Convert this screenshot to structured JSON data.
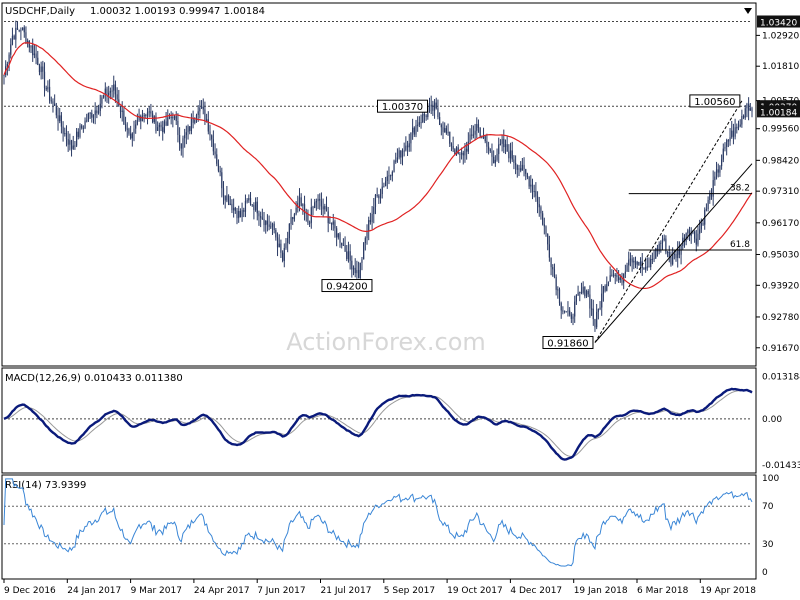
{
  "chart_data": [
    {
      "type": "candlestick",
      "title": "USDCHF,Daily",
      "ohlc": "1.00032 1.00193 0.99947 1.00184",
      "ylim": [
        0.9105,
        1.0405
      ],
      "y_tick_labels": [
        "1.02920",
        "1.01810",
        "1.00570",
        "0.99560",
        "0.98420",
        "0.97310",
        "0.96170",
        "0.95030",
        "0.93920",
        "0.92780",
        "0.91670"
      ],
      "y_tick_values": [
        1.0292,
        1.0181,
        1.0057,
        0.9956,
        0.9842,
        0.9731,
        0.9617,
        0.9503,
        0.9392,
        0.9278,
        0.9167
      ],
      "x_tick_labels": [
        "9 Dec 2016",
        "24 Jan 2017",
        "9 Mar 2017",
        "24 Apr 2017",
        "7 Jun 2017",
        "21 Jul 2017",
        "5 Sep 2017",
        "19 Oct 2017",
        "4 Dec 2017",
        "19 Jan 2018",
        "6 Mar 2018",
        "19 Apr 2018"
      ],
      "price_axis_badges": [
        {
          "label": "1.03420",
          "value": 1.0342
        },
        {
          "label": "1.00370",
          "value": 1.0037
        },
        {
          "label": "1.00184",
          "value": 1.00184
        }
      ],
      "price_path_anchors": [
        [
          0,
          1.015
        ],
        [
          5,
          1.029
        ],
        [
          10,
          1.032
        ],
        [
          15,
          1.026
        ],
        [
          20,
          1.02
        ],
        [
          25,
          1.01
        ],
        [
          30,
          1.003
        ],
        [
          35,
          0.995
        ],
        [
          40,
          0.989
        ],
        [
          45,
          0.995
        ],
        [
          50,
          1.0
        ],
        [
          55,
          1.003
        ],
        [
          60,
          1.008
        ],
        [
          65,
          1.01
        ],
        [
          70,
          1.001
        ],
        [
          75,
          0.99
        ],
        [
          80,
          1.0
        ],
        [
          85,
          1.002
        ],
        [
          90,
          0.997
        ],
        [
          95,
          0.996
        ],
        [
          100,
          1.001
        ],
        [
          105,
          0.99
        ],
        [
          110,
          0.996
        ],
        [
          115,
          1.004
        ],
        [
          120,
          0.999
        ],
        [
          125,
          0.987
        ],
        [
          130,
          0.973
        ],
        [
          135,
          0.968
        ],
        [
          140,
          0.964
        ],
        [
          145,
          0.97
        ],
        [
          150,
          0.967
        ],
        [
          155,
          0.962
        ],
        [
          160,
          0.959
        ],
        [
          165,
          0.948
        ],
        [
          170,
          0.962
        ],
        [
          175,
          0.969
        ],
        [
          180,
          0.962
        ],
        [
          185,
          0.97
        ],
        [
          190,
          0.966
        ],
        [
          195,
          0.96
        ],
        [
          200,
          0.955
        ],
        [
          205,
          0.948
        ],
        [
          210,
          0.943
        ],
        [
          215,
          0.959
        ],
        [
          220,
          0.97
        ],
        [
          225,
          0.976
        ],
        [
          230,
          0.982
        ],
        [
          235,
          0.987
        ],
        [
          240,
          0.992
        ],
        [
          245,
          0.998
        ],
        [
          250,
          1.001
        ],
        [
          255,
          1.003
        ],
        [
          260,
          0.996
        ],
        [
          265,
          0.99
        ],
        [
          270,
          0.985
        ],
        [
          275,
          0.99
        ],
        [
          280,
          0.997
        ],
        [
          285,
          0.99
        ],
        [
          290,
          0.985
        ],
        [
          295,
          0.99
        ],
        [
          300,
          0.986
        ],
        [
          305,
          0.982
        ],
        [
          310,
          0.978
        ],
        [
          315,
          0.972
        ],
        [
          320,
          0.96
        ],
        [
          325,
          0.945
        ],
        [
          330,
          0.932
        ],
        [
          335,
          0.927
        ],
        [
          340,
          0.935
        ],
        [
          345,
          0.938
        ],
        [
          350,
          0.925
        ],
        [
          355,
          0.938
        ],
        [
          360,
          0.945
        ],
        [
          365,
          0.94
        ],
        [
          370,
          0.95
        ],
        [
          375,
          0.948
        ],
        [
          380,
          0.944
        ],
        [
          385,
          0.95
        ],
        [
          390,
          0.956
        ],
        [
          395,
          0.948
        ],
        [
          400,
          0.952
        ],
        [
          405,
          0.96
        ],
        [
          410,
          0.956
        ],
        [
          415,
          0.965
        ],
        [
          420,
          0.975
        ],
        [
          425,
          0.985
        ],
        [
          430,
          0.993
        ],
        [
          435,
          0.996
        ],
        [
          440,
          1.005
        ],
        [
          443,
          1.0018
        ]
      ],
      "sma": "moving average (red)",
      "annotations": [
        {
          "label": "1.00370",
          "date_index": 252,
          "value": 1.0037
        },
        {
          "label": "1.00560",
          "date_index": 437,
          "value": 1.0056
        },
        {
          "label": "0.94200",
          "date_index": 212,
          "value": 0.942
        },
        {
          "label": "0.91860",
          "date_index": 350,
          "value": 0.9186
        }
      ],
      "fib_levels": [
        {
          "label": "38.2",
          "value": 0.9722
        },
        {
          "label": "61.8",
          "value": 0.9519
        }
      ]
    },
    {
      "type": "line",
      "title": "MACD(12,26,9) 0.010433 0.011380",
      "ylim": [
        -0.0165,
        0.0155
      ],
      "y_tick_labels": [
        "0.013184",
        "0.00",
        "-0.014335"
      ],
      "y_tick_values": [
        0.013184,
        0.0,
        -0.014335
      ],
      "series": [
        {
          "name": "MACD(12,26,9)",
          "color": "#0a1a7a"
        },
        {
          "name": "signal",
          "color": "#9a9a9a"
        }
      ],
      "current": {
        "macd": 0.010433,
        "signal": 0.01138
      }
    },
    {
      "type": "line",
      "title": "RSI(14) 73.9399",
      "ylim": [
        0,
        100
      ],
      "y_tick_labels": [
        "100",
        "70",
        "30",
        "0"
      ],
      "y_tick_values": [
        100,
        70,
        30,
        0
      ],
      "series": [
        {
          "name": "RSI(14)",
          "color": "#3a86d6"
        }
      ],
      "current": 73.9399
    }
  ],
  "watermark": "ActionForex.com",
  "colors": {
    "candle": "#2a3a64",
    "sma": "#e02222",
    "macd": "#0a1a7a",
    "signal": "#9a9a9a",
    "rsi": "#3a86d6",
    "grid": "#c8c8c8",
    "border": "#000000"
  }
}
